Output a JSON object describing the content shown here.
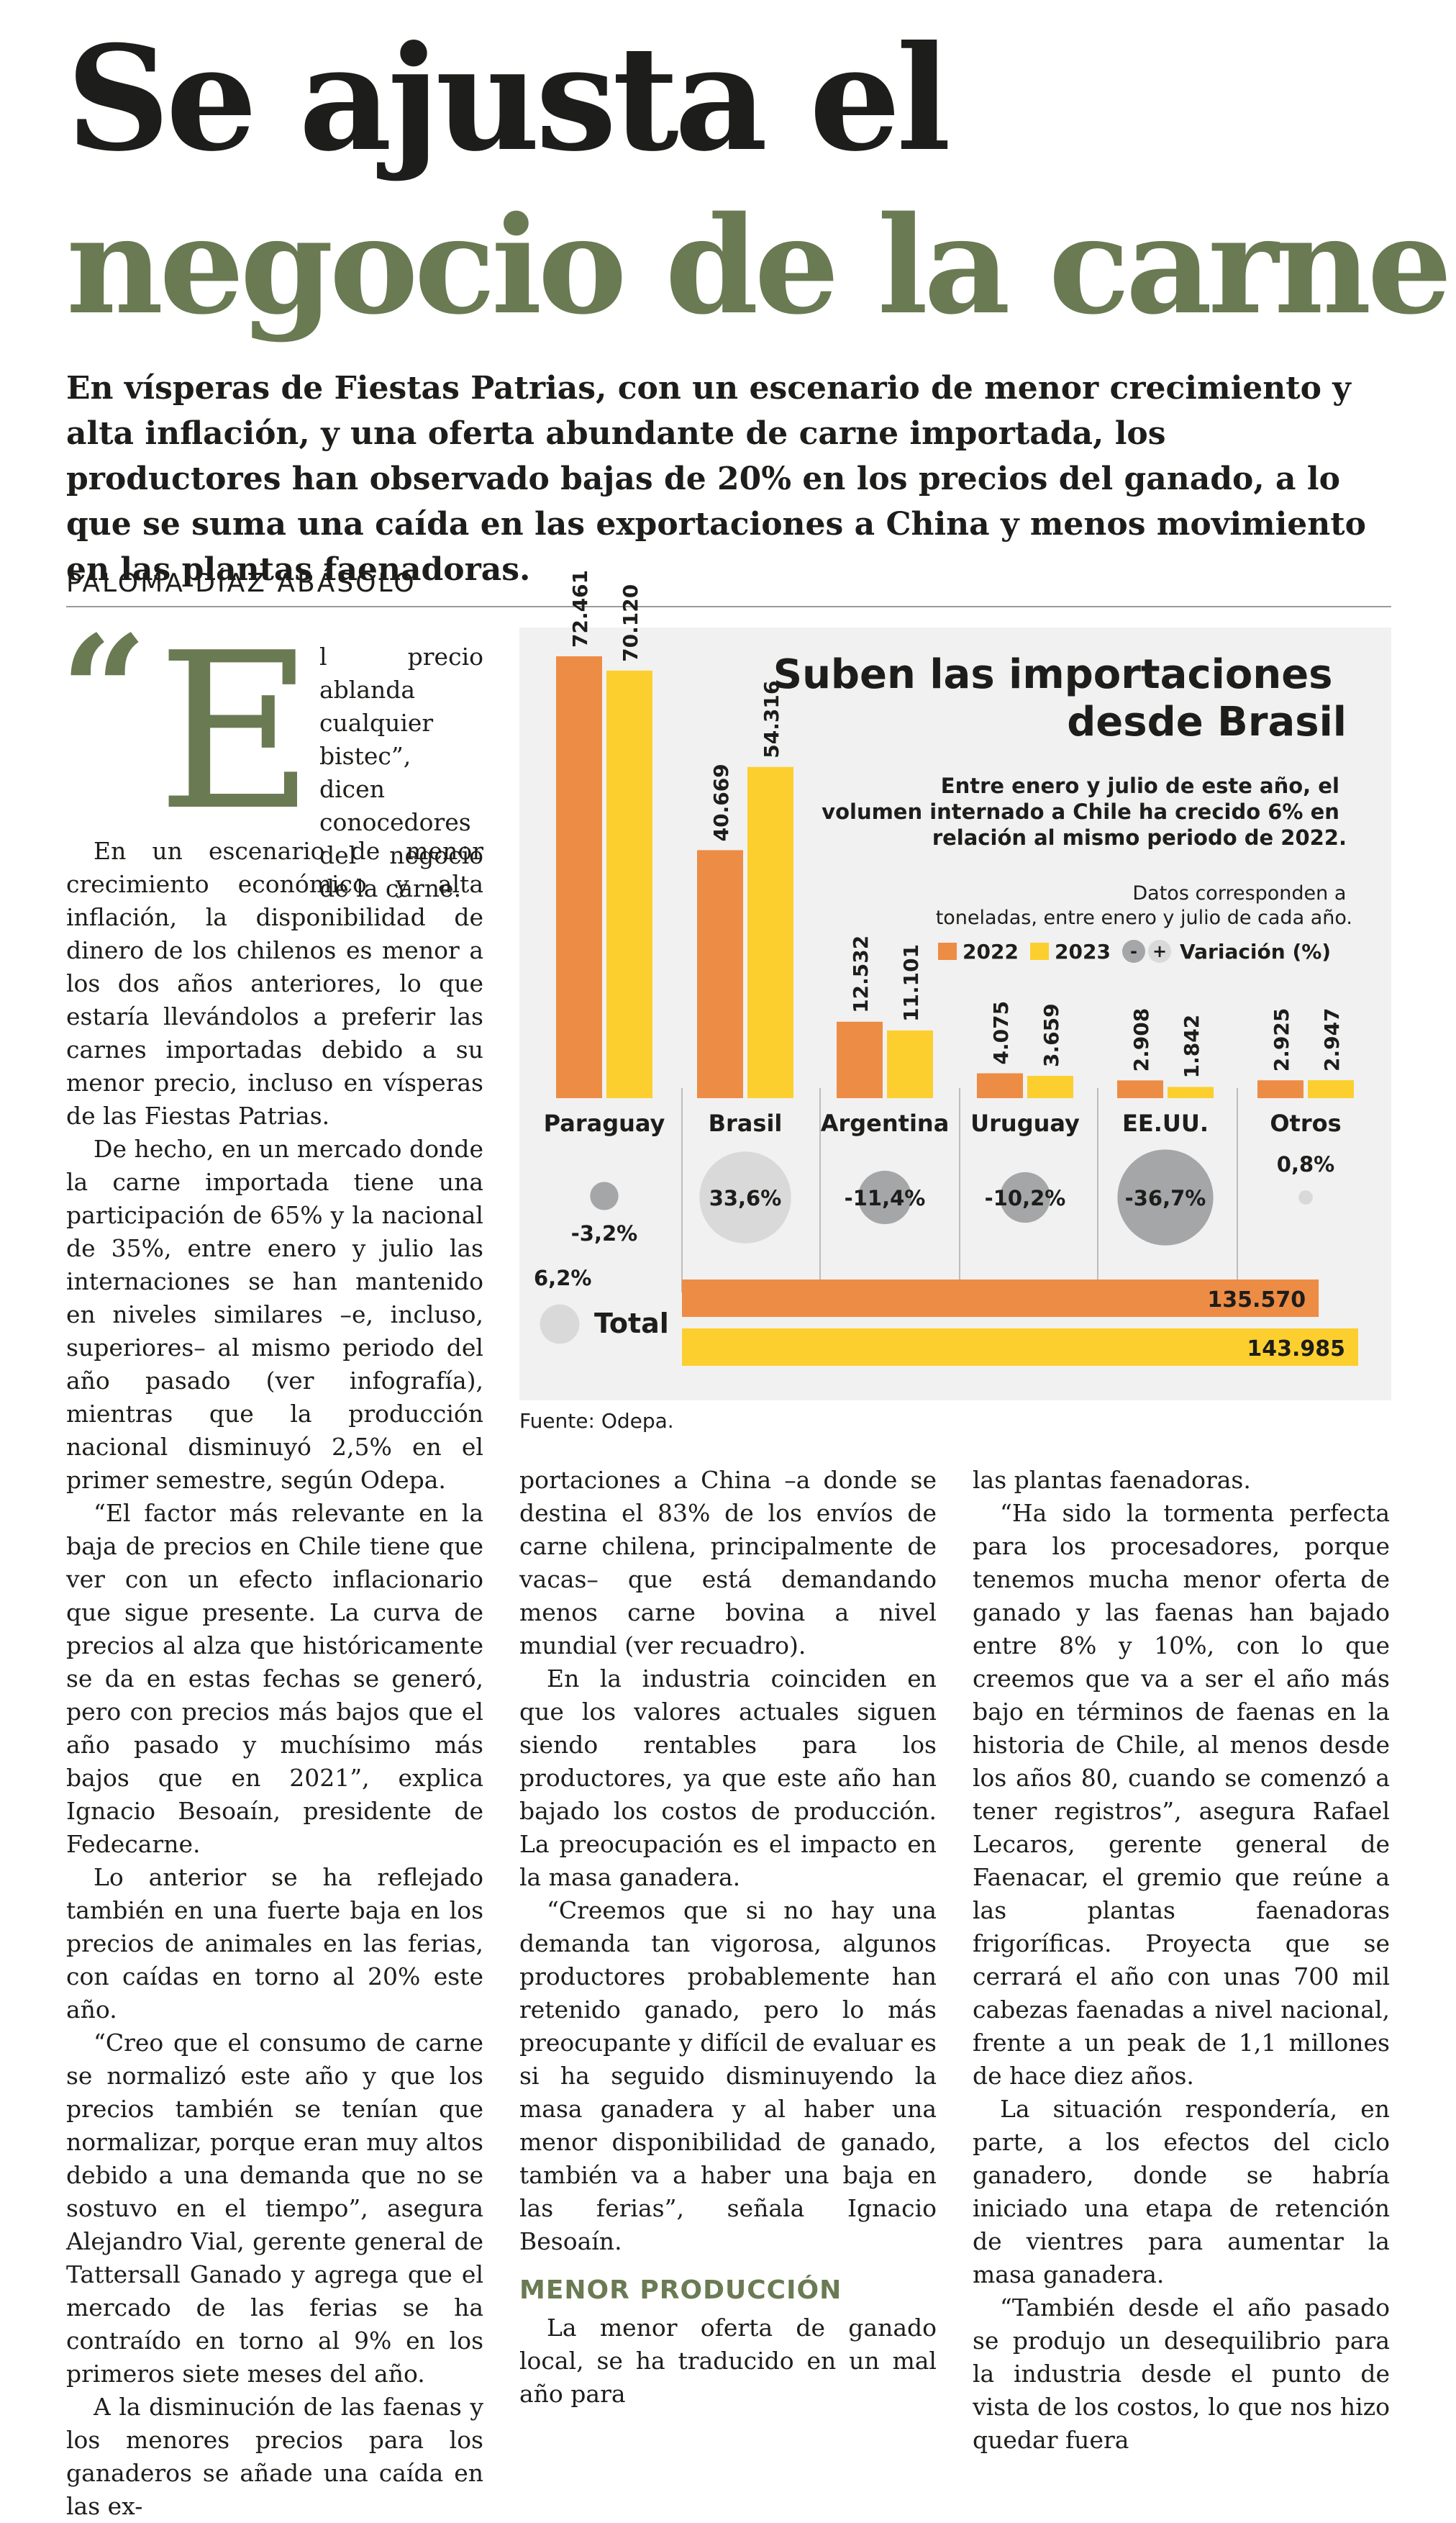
{
  "headline": {
    "line1": "Se ajusta el",
    "line2": "negocio de la carne"
  },
  "lead": "En vísperas de Fiestas Patrias, con un escenario de menor crecimiento y alta inflación, y una oferta abundante de carne importada, los productores han observado bajas de 20% en los precios del ganado, a lo que se suma una caída en las exportaciones a China y menos movimiento en las plantas faenadoras.",
  "byline": "PALOMA DÍAZ ABÁSOLO",
  "dropcap": {
    "quote_mark": "“",
    "letter": "E",
    "text": "l precio ablanda cualquier bistec”, dicen conocedores del negocio de la carne."
  },
  "col1": [
    "En un escenario de menor crecimiento económico y alta inflación, la disponibilidad de dinero de los chilenos es menor a los dos años anteriores, lo que estaría llevándolos a preferir las carnes importadas debido a su menor precio, incluso en vísperas de las Fiestas Patrias.",
    "De hecho, en un mercado donde la carne importada tiene una participación de 65% y la nacional de 35%, entre enero y julio las internaciones se han mantenido en niveles similares –e, incluso, superiores– al mismo periodo del año pasado (ver infografía), mientras que la producción nacional disminuyó 2,5% en el primer semestre, según Odepa.",
    "“El factor más relevante en la baja de precios en Chile tiene que ver con un efecto inflacionario que sigue presente. La curva de precios al alza que históricamente se da en estas fechas se generó, pero con precios más bajos que el año pasado y muchísimo más bajos que en 2021”, explica Ignacio Besoaín, presidente de Fedecarne.",
    "Lo anterior se ha reflejado también en una fuerte baja en los precios de animales en las ferias, con caídas en torno al 20% este año.",
    "“Creo que el consumo de carne se normalizó este año y que los precios también se tenían que normalizar, porque eran muy altos debido a una demanda que no se sostuvo en el tiempo”, asegura Alejandro Vial, gerente general de Tattersall Ganado y agrega que el mercado de las ferias se ha contraído en torno al 9% en los primeros siete meses del año.",
    "A la disminución de las faenas y los menores precios para los ganaderos se añade una caída en las ex-"
  ],
  "col2": [
    "portaciones a China –a donde se destina el 83% de los envíos de carne chilena, principalmente de vacas– que está demandando menos carne bovina a nivel mundial (ver recuadro).",
    "En la industria coinciden en que los valores actuales siguen siendo rentables para los productores, ya que este año han bajado los costos de producción. La preocupación es el impacto en la masa ganadera.",
    "“Creemos que si no hay una demanda tan vigorosa, algunos productores probablemente han retenido ganado, pero lo más preocupante y difícil de evaluar es si ha seguido disminuyendo la masa ganadera y al haber una menor disponibilidad de ganado, también va a haber una baja en las ferias”, señala Ignacio Besoaín."
  ],
  "col2_subhead": "MENOR PRODUCCIÓN",
  "col2_after": "La menor oferta de ganado local, se ha traducido en un mal año para",
  "col3": [
    "las plantas faenadoras.",
    "“Ha sido la tormenta perfecta para los procesadores, porque tenemos mucha menor oferta de ganado y las faenas han bajado entre 8% y 10%, con lo que creemos que va a ser el año más bajo en términos de faenas en la historia de Chile, al menos desde los años 80, cuando se comenzó a tener registros”, asegura Rafael Lecaros, gerente general de Faenacar, el gremio que reúne a las plantas faenadoras frigoríficas. Proyecta que se cerrará el año con unas 700 mil cabezas faenadas a nivel nacional, frente a un peak de 1,1 millones de hace diez años.",
    "La situación respondería, en parte, a los efectos del ciclo ganadero, donde se habría iniciado una etapa de retención de vientres para aumentar la masa ganadera.",
    "“También desde el año pasado se produjo un desequilibrio para la industria desde el punto de vista de los costos, lo que nos hizo quedar fuera"
  ],
  "source": "Fuente: Odepa.",
  "chart_data": {
    "type": "bar",
    "title": "Suben las importaciones desde Brasil",
    "subtitle": "Entre enero y julio de este año, el volumen internado a Chile ha crecido 6% en relación al mismo periodo de 2022.",
    "note": "Datos corresponden a toneladas, entre enero y julio de cada año.",
    "categories": [
      "Paraguay",
      "Brasil",
      "Argentina",
      "Uruguay",
      "EE.UU.",
      "Otros"
    ],
    "series": [
      {
        "name": "2022",
        "color": "#ed8c45",
        "values": [
          72461,
          40669,
          12532,
          4075,
          2908,
          2925
        ],
        "labels": [
          "72.461",
          "40.669",
          "12.532",
          "4.075",
          "2.908",
          "2.925"
        ]
      },
      {
        "name": "2023",
        "color": "#fccf2f",
        "values": [
          70120,
          54316,
          11101,
          3659,
          1842,
          2947
        ],
        "labels": [
          "70.120",
          "54.316",
          "11.101",
          "3.659",
          "1.842",
          "2.947"
        ]
      }
    ],
    "variation_legend": "Variación (%)",
    "variation_signs": [
      "-",
      "+"
    ],
    "variation": [
      -3.2,
      33.6,
      -11.4,
      -10.2,
      -36.7,
      0.8
    ],
    "variation_labels": [
      "-3,2%",
      "33,6%",
      "-11,4%",
      "-10,2%",
      "-36,7%",
      "0,8%"
    ],
    "total": {
      "label": "Total",
      "variation": 6.2,
      "variation_label": "6,2%",
      "values": [
        135570,
        143985
      ],
      "value_labels": [
        "135.570",
        "143.985"
      ]
    }
  }
}
